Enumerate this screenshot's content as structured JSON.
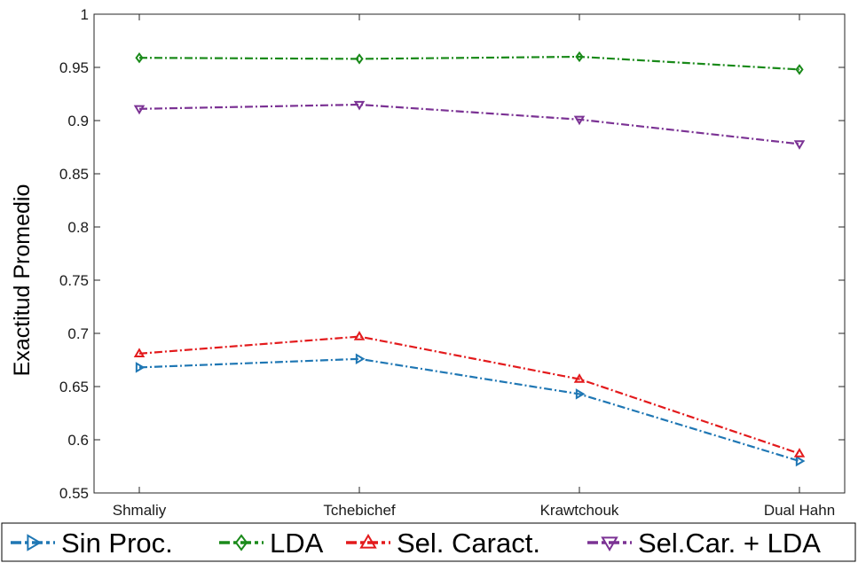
{
  "chart_data": {
    "type": "line",
    "title": "",
    "xlabel": "",
    "ylabel": "Exactitud Promedio",
    "categories": [
      "Shmaliy",
      "Tchebichef",
      "Krawtchouk",
      "Dual Hahn"
    ],
    "ylim": [
      0.55,
      1
    ],
    "yticks": [
      "0.55",
      "0.6",
      "0.65",
      "0.7",
      "0.75",
      "0.8",
      "0.85",
      "0.9",
      "0.95",
      "1"
    ],
    "grid": false,
    "legend_position": "bottom",
    "series": [
      {
        "name": "Sin Proc.",
        "color": "#1f77b4",
        "marker": "triangle-right",
        "values": [
          0.668,
          0.676,
          0.643,
          0.58
        ]
      },
      {
        "name": "LDA",
        "color": "#1a8a1a",
        "marker": "diamond",
        "values": [
          0.959,
          0.958,
          0.96,
          0.948
        ]
      },
      {
        "name": "Sel. Caract.",
        "color": "#e31a1c",
        "marker": "triangle-up",
        "values": [
          0.681,
          0.697,
          0.657,
          0.587
        ]
      },
      {
        "name": "Sel.Car. + LDA",
        "color": "#7b3294",
        "marker": "triangle-down",
        "values": [
          0.911,
          0.915,
          0.901,
          0.878
        ]
      }
    ]
  }
}
